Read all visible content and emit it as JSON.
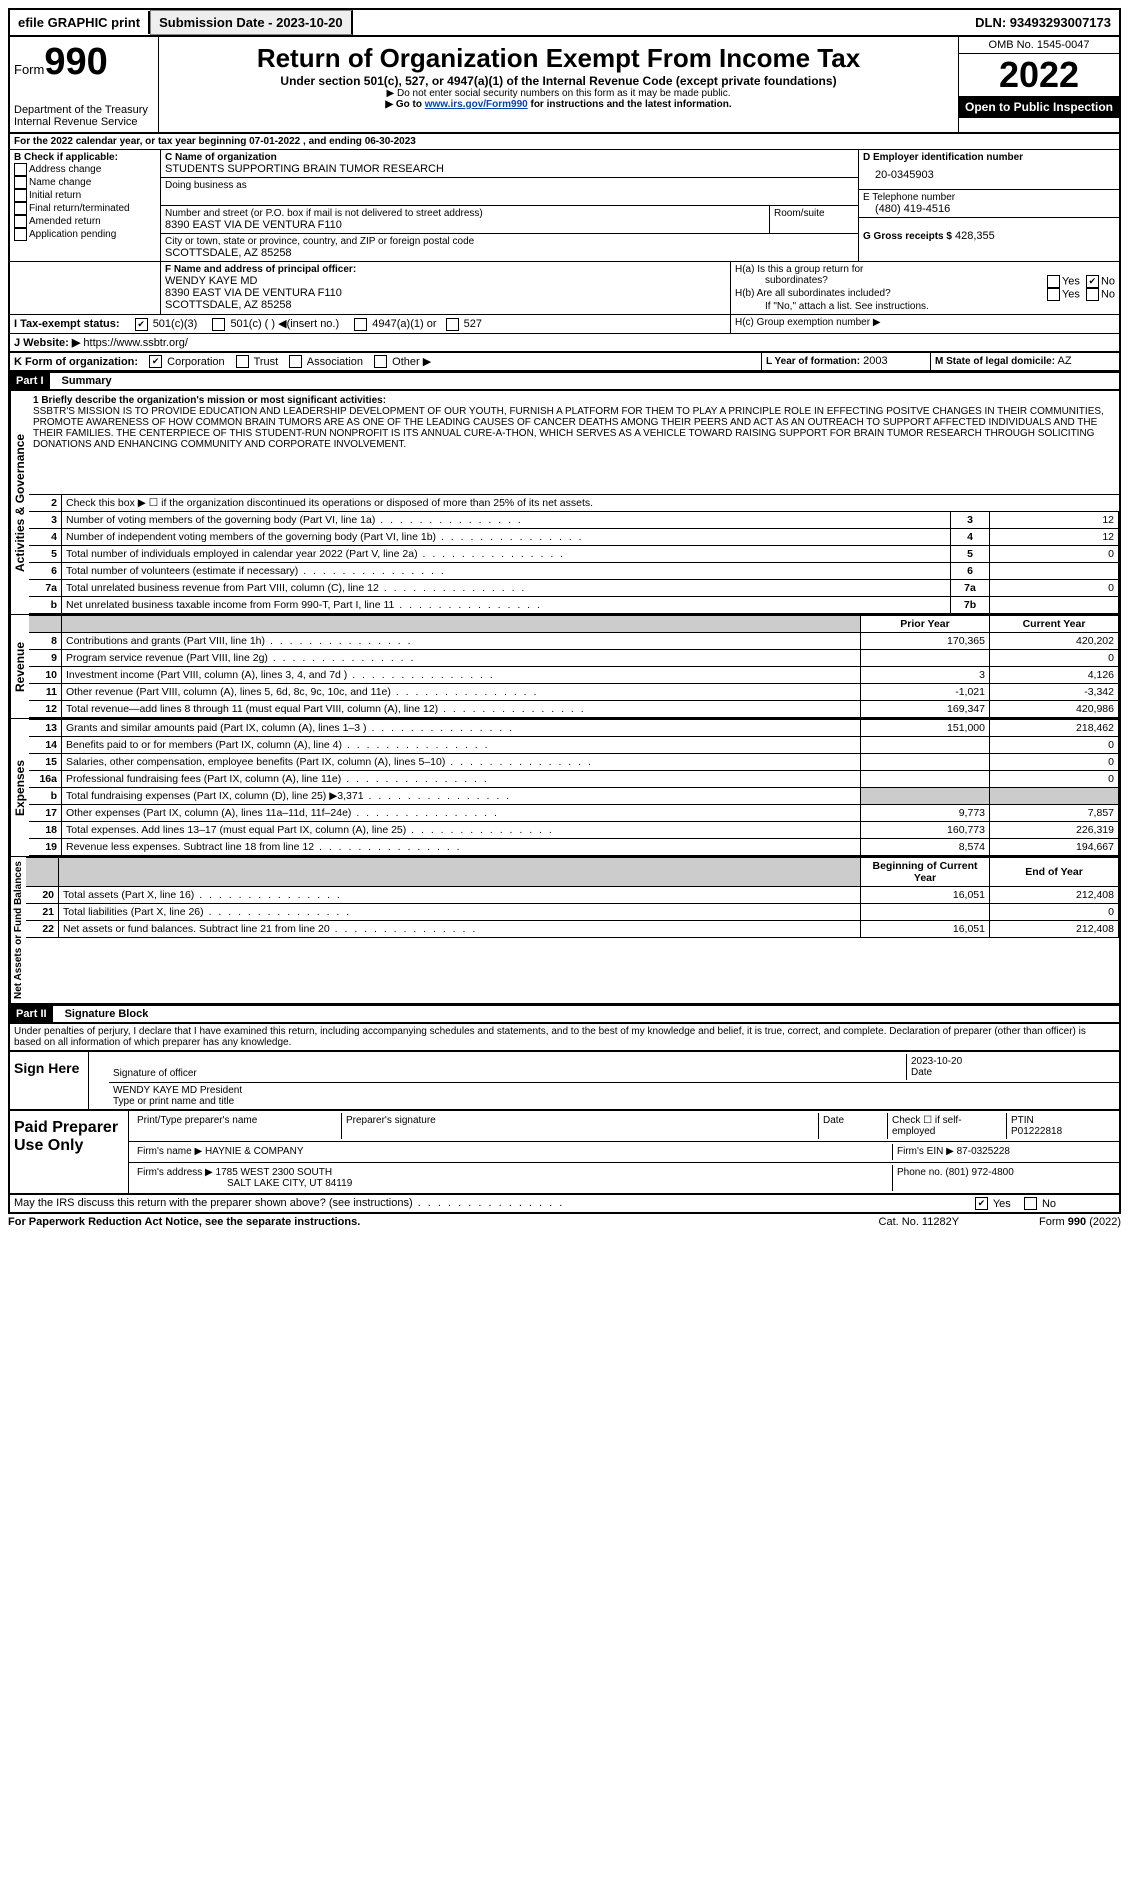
{
  "topbar": {
    "efile": "efile GRAPHIC print",
    "submission_label": "Submission Date - 2023-10-20",
    "dln_label": "DLN: 93493293007173"
  },
  "header": {
    "form_label": "Form",
    "form_number": "990",
    "dept": "Department of the Treasury",
    "irs": "Internal Revenue Service",
    "title": "Return of Organization Exempt From Income Tax",
    "subtitle": "Under section 501(c), 527, or 4947(a)(1) of the Internal Revenue Code (except private foundations)",
    "warn": "Do not enter social security numbers on this form as it may be made public.",
    "goto_pre": "Go to ",
    "goto_link": "www.irs.gov/Form990",
    "goto_post": " for instructions and the latest information.",
    "omb": "OMB No. 1545-0047",
    "year": "2022",
    "inspect": "Open to Public Inspection"
  },
  "lineA": "For the 2022 calendar year, or tax year beginning 07-01-2022   , and ending 06-30-2023",
  "sectionB": {
    "label": "B Check if applicable:",
    "items": [
      "Address change",
      "Name change",
      "Initial return",
      "Final return/terminated",
      "Amended return",
      "Application pending"
    ]
  },
  "sectionC": {
    "name_label": "C Name of organization",
    "name": "STUDENTS SUPPORTING BRAIN TUMOR RESEARCH",
    "dba_label": "Doing business as",
    "addr_label": "Number and street (or P.O. box if mail is not delivered to street address)",
    "addr": "8390 EAST VIA DE VENTURA F110",
    "room_label": "Room/suite",
    "city_label": "City or town, state or province, country, and ZIP or foreign postal code",
    "city": "SCOTTSDALE, AZ  85258"
  },
  "sectionD": {
    "label": "D Employer identification number",
    "ein": "20-0345903"
  },
  "sectionE": {
    "label": "E Telephone number",
    "phone": "(480) 419-4516"
  },
  "sectionG": {
    "label": "G Gross receipts $",
    "amount": "428,355"
  },
  "sectionF": {
    "label": "F  Name and address of principal officer:",
    "name": "WENDY KAYE MD",
    "addr1": "8390 EAST VIA DE VENTURA F110",
    "addr2": "SCOTTSDALE, AZ  85258"
  },
  "sectionH": {
    "a": "H(a)  Is this a group return for",
    "a2": "subordinates?",
    "b": "H(b)  Are all subordinates included?",
    "note": "If \"No,\" attach a list. See instructions.",
    "c": "H(c)  Group exemption number ▶"
  },
  "sectionI": {
    "label": "I    Tax-exempt status:",
    "o1": "501(c)(3)",
    "o2": "501(c) (  ) ◀(insert no.)",
    "o3": "4947(a)(1) or",
    "o4": "527"
  },
  "sectionJ": {
    "label": "J    Website: ▶",
    "url": "https://www.ssbtr.org/"
  },
  "sectionK": {
    "label": "K Form of organization:",
    "o1": "Corporation",
    "o2": "Trust",
    "o3": "Association",
    "o4": "Other ▶"
  },
  "sectionL": {
    "label": "L Year of formation:",
    "val": "2003"
  },
  "sectionM": {
    "label": "M State of legal domicile:",
    "val": "AZ"
  },
  "part1": {
    "hdr": "Part I",
    "title": "Summary"
  },
  "mission_label": "1   Briefly describe the organization's mission or most significant activities:",
  "mission": "SSBTR'S MISSION IS TO PROVIDE EDUCATION AND LEADERSHIP DEVELOPMENT OF OUR YOUTH, FURNISH A PLATFORM FOR THEM TO PLAY A PRINCIPLE ROLE IN EFFECTING POSITVE CHANGES IN THEIR COMMUNITIES, PROMOTE AWARENESS OF HOW COMMON BRAIN TUMORS ARE AS ONE OF THE LEADING CAUSES OF CANCER DEATHS AMONG THEIR PEERS AND ACT AS AN OUTREACH TO SUPPORT AFFECTED INDIVIDUALS AND THE THEIR FAMILIES. THE CENTERPIECE OF THIS STUDENT-RUN NONPROFIT IS ITS ANNUAL CURE-A-THON, WHICH SERVES AS A VEHICLE TOWARD RAISING SUPPORT FOR BRAIN TUMOR RESEARCH THROUGH SOLICITING DONATIONS AND ENHANCING COMMUNITY AND CORPORATE INVOLVEMENT.",
  "gov_lines": {
    "2": "Check this box ▶ ☐  if the organization discontinued its operations or disposed of more than 25% of its net assets.",
    "3": "Number of voting members of the governing body (Part VI, line 1a)",
    "4": "Number of independent voting members of the governing body (Part VI, line 1b)",
    "5": "Total number of individuals employed in calendar year 2022 (Part V, line 2a)",
    "6": "Total number of volunteers (estimate if necessary)",
    "7a": "Total unrelated business revenue from Part VIII, column (C), line 12",
    "7b": "Net unrelated business taxable income from Form 990-T, Part I, line 11"
  },
  "gov_vals": {
    "3": "12",
    "4": "12",
    "5": "0",
    "6": "",
    "7a": "0",
    "7b": ""
  },
  "col_hdrs": {
    "prior": "Prior Year",
    "current": "Current Year"
  },
  "rev_lines": [
    {
      "n": "8",
      "d": "Contributions and grants (Part VIII, line 1h)",
      "p": "170,365",
      "c": "420,202"
    },
    {
      "n": "9",
      "d": "Program service revenue (Part VIII, line 2g)",
      "p": "",
      "c": "0"
    },
    {
      "n": "10",
      "d": "Investment income (Part VIII, column (A), lines 3, 4, and 7d )",
      "p": "3",
      "c": "4,126"
    },
    {
      "n": "11",
      "d": "Other revenue (Part VIII, column (A), lines 5, 6d, 8c, 9c, 10c, and 11e)",
      "p": "-1,021",
      "c": "-3,342"
    },
    {
      "n": "12",
      "d": "Total revenue—add lines 8 through 11 (must equal Part VIII, column (A), line 12)",
      "p": "169,347",
      "c": "420,986"
    }
  ],
  "exp_lines": [
    {
      "n": "13",
      "d": "Grants and similar amounts paid (Part IX, column (A), lines 1–3 )",
      "p": "151,000",
      "c": "218,462"
    },
    {
      "n": "14",
      "d": "Benefits paid to or for members (Part IX, column (A), line 4)",
      "p": "",
      "c": "0"
    },
    {
      "n": "15",
      "d": "Salaries, other compensation, employee benefits (Part IX, column (A), lines 5–10)",
      "p": "",
      "c": "0"
    },
    {
      "n": "16a",
      "d": "Professional fundraising fees (Part IX, column (A), line 11e)",
      "p": "",
      "c": "0"
    },
    {
      "n": "b",
      "d": "Total fundraising expenses (Part IX, column (D), line 25) ▶3,371",
      "p": "SHADE",
      "c": "SHADE"
    },
    {
      "n": "17",
      "d": "Other expenses (Part IX, column (A), lines 11a–11d, 11f–24e)",
      "p": "9,773",
      "c": "7,857"
    },
    {
      "n": "18",
      "d": "Total expenses. Add lines 13–17 (must equal Part IX, column (A), line 25)",
      "p": "160,773",
      "c": "226,319"
    },
    {
      "n": "19",
      "d": "Revenue less expenses. Subtract line 18 from line 12",
      "p": "8,574",
      "c": "194,667"
    }
  ],
  "net_hdrs": {
    "begin": "Beginning of Current Year",
    "end": "End of Year"
  },
  "net_lines": [
    {
      "n": "20",
      "d": "Total assets (Part X, line 16)",
      "p": "16,051",
      "c": "212,408"
    },
    {
      "n": "21",
      "d": "Total liabilities (Part X, line 26)",
      "p": "",
      "c": "0"
    },
    {
      "n": "22",
      "d": "Net assets or fund balances. Subtract line 21 from line 20",
      "p": "16,051",
      "c": "212,408"
    }
  ],
  "part2": {
    "hdr": "Part II",
    "title": "Signature Block"
  },
  "penalties": "Under penalties of perjury, I declare that I have examined this return, including accompanying schedules and statements, and to the best of my knowledge and belief, it is true, correct, and complete. Declaration of preparer (other than officer) is based on all information of which preparer has any knowledge.",
  "sign": {
    "here": "Sign Here",
    "sig_label": "Signature of officer",
    "date_label": "Date",
    "date": "2023-10-20",
    "name": "WENDY KAYE MD President",
    "name_label": "Type or print name and title"
  },
  "paid": {
    "label": "Paid Preparer Use Only",
    "h1": "Print/Type preparer's name",
    "h2": "Preparer's signature",
    "h3": "Date",
    "h4_pre": "Check ☐ if self-employed",
    "h5": "PTIN",
    "ptin": "P01222818",
    "firm_label": "Firm's name    ▶",
    "firm": "HAYNIE & COMPANY",
    "ein_label": "Firm's EIN ▶",
    "ein": "87-0325228",
    "addr_label": "Firm's address ▶",
    "addr1": "1785 WEST 2300 SOUTH",
    "addr2": "SALT LAKE CITY, UT  84119",
    "phone_label": "Phone no.",
    "phone": "(801) 972-4800"
  },
  "discuss": "May the IRS discuss this return with the preparer shown above? (see instructions)",
  "footer": {
    "left": "For Paperwork Reduction Act Notice, see the separate instructions.",
    "mid": "Cat. No. 11282Y",
    "right": "Form 990 (2022)"
  },
  "vert": {
    "gov": "Activities & Governance",
    "rev": "Revenue",
    "exp": "Expenses",
    "net": "Net Assets or Fund Balances"
  },
  "yesno": {
    "yes": "Yes",
    "no": "No"
  }
}
